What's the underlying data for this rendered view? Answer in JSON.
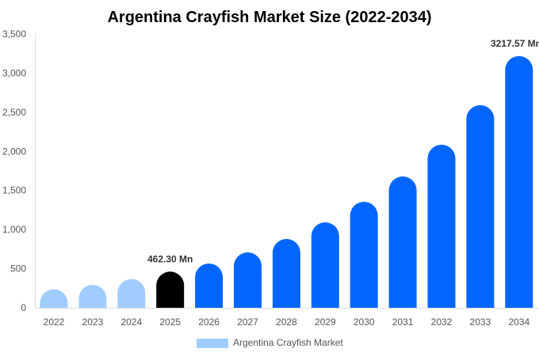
{
  "chart_data": {
    "type": "bar",
    "title": "Argentina Crayfish Market Size (2022-2034)",
    "categories": [
      "2022",
      "2023",
      "2024",
      "2025",
      "2026",
      "2027",
      "2028",
      "2029",
      "2030",
      "2031",
      "2032",
      "2033",
      "2034"
    ],
    "series": [
      {
        "name": "Argentina Crayfish Market",
        "values": [
          236,
          293,
          367,
          462.3,
          566,
          708,
          880,
          1092,
          1355,
          1679,
          2085,
          2591,
          3217.57
        ]
      }
    ],
    "data_labels": [
      {
        "category": "2025",
        "text": "462.30 Mn"
      },
      {
        "category": "2034",
        "text": "3217.57 Mn"
      }
    ],
    "ylim": [
      0,
      3500
    ],
    "yticks": [
      "0",
      "500",
      "1,000",
      "1,500",
      "2,000",
      "2,500",
      "3,000",
      "3,500"
    ],
    "xlabel": "",
    "ylabel": "",
    "grid": false,
    "legend": "bottom",
    "colors": {
      "historical": "#a0cdfd",
      "current": "#000000",
      "forecast": "#0066ff"
    }
  }
}
